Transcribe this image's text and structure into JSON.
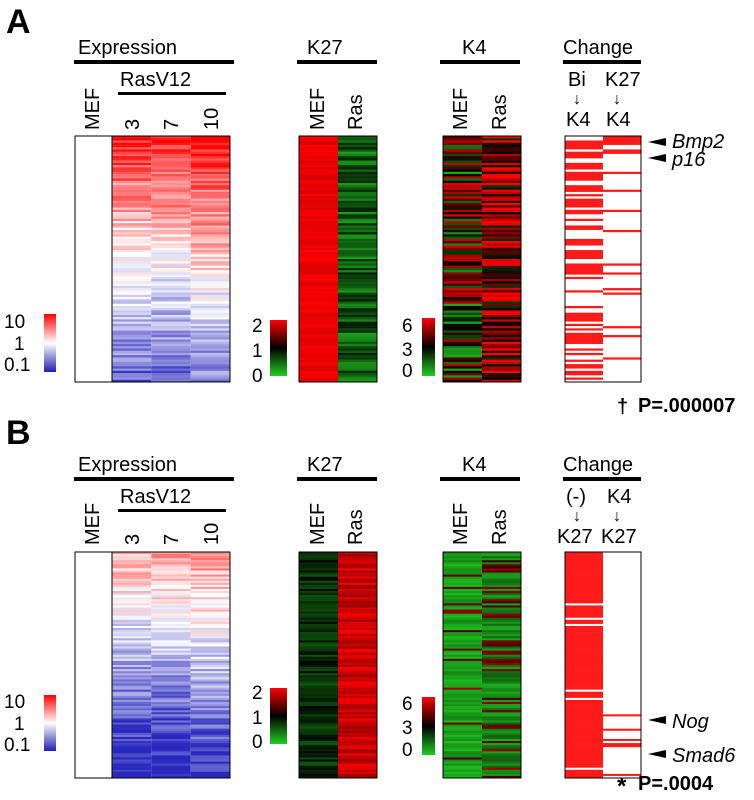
{
  "panels": [
    {
      "label": "A",
      "expression": {
        "title": "Expression",
        "ctrl": "MEF",
        "group": "RasV12",
        "cols": [
          "3",
          "7",
          "10"
        ]
      },
      "expr_scale": {
        "hi": "10",
        "mid": "1",
        "lo": "0.1"
      },
      "k27": {
        "title": "K27",
        "cols": [
          "MEF",
          "Ras"
        ]
      },
      "k27_scale": {
        "hi": "2",
        "mid": "1",
        "lo": "0"
      },
      "k4": {
        "title": "K4",
        "cols": [
          "MEF",
          "Ras"
        ]
      },
      "k4_scale": {
        "hi": "6",
        "mid": "3",
        "lo": "0"
      },
      "change": {
        "title": "Change",
        "c1_top": "Bi",
        "c1_bot": "K4",
        "c2_top": "K27",
        "c2_bot": "K4"
      },
      "genes": [
        "Bmp2",
        "p16"
      ],
      "stat": {
        "symbol": "†",
        "text": "P=.000007"
      },
      "heatmap_model": {
        "expr": "red-to-blue gradient",
        "k27": "MEF red / Ras green",
        "k4": "mixed red-green",
        "change": "red ticks col1 dense, col2 sparse"
      }
    },
    {
      "label": "B",
      "expression": {
        "title": "Expression",
        "ctrl": "MEF",
        "group": "RasV12",
        "cols": [
          "3",
          "7",
          "10"
        ]
      },
      "expr_scale": {
        "hi": "10",
        "mid": "1",
        "lo": "0.1"
      },
      "k27": {
        "title": "K27",
        "cols": [
          "MEF",
          "Ras"
        ]
      },
      "k27_scale": {
        "hi": "2",
        "mid": "1",
        "lo": "0"
      },
      "k4": {
        "title": "K4",
        "cols": [
          "MEF",
          "Ras"
        ]
      },
      "k4_scale": {
        "hi": "6",
        "mid": "3",
        "lo": "0"
      },
      "change": {
        "title": "Change",
        "c1_top": "(-)",
        "c1_bot": "K27",
        "c2_top": "K4",
        "c2_bot": "K27"
      },
      "genes": [
        "Nog",
        "Smad6"
      ],
      "stat": {
        "symbol": "*",
        "text": "P=.0004"
      },
      "heatmap_model": {
        "expr": "mostly blue",
        "k27": "MEF dark / Ras red",
        "k4": "mostly green",
        "change": "col1 solid red, col2 sparse near bottom"
      }
    }
  ],
  "colors": {
    "red": "#ff0000",
    "blue": "#2b2bb5",
    "green": "#22bb22",
    "black": "#000000",
    "white": "#ffffff"
  }
}
